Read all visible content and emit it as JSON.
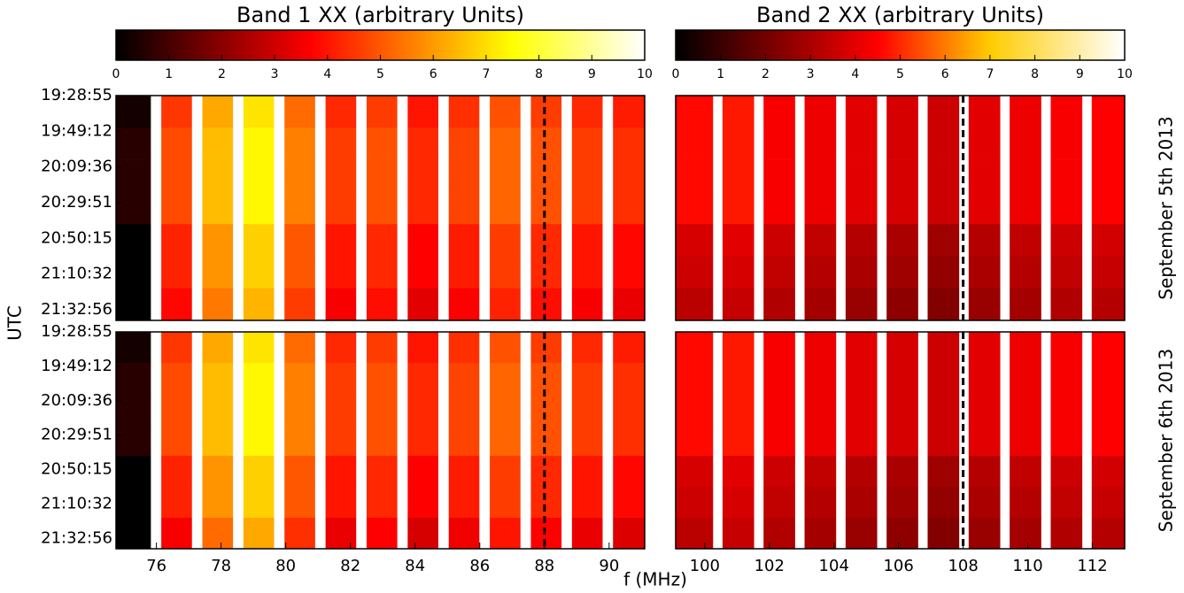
{
  "figure": {
    "xlabel": "f (MHz)",
    "ylabel": "UTC"
  },
  "chart_data": [
    {
      "type": "heatmap",
      "colorbar": {
        "title": "Band 1 XX (arbitrary Units)",
        "lim": [
          0,
          10
        ],
        "ticks": [
          0,
          1,
          2,
          3,
          4,
          5,
          6,
          7,
          8,
          9,
          10
        ],
        "colormap": [
          [
            0,
            "#000000"
          ],
          [
            3.7,
            "#ff0000"
          ],
          [
            7.5,
            "#ffff00"
          ],
          [
            10,
            "#ffffff"
          ]
        ]
      },
      "x_edges": [
        74.75,
        75.82,
        76.15,
        77.09,
        77.42,
        78.36,
        78.69,
        79.63,
        79.96,
        80.9,
        81.23,
        82.17,
        82.5,
        83.44,
        83.77,
        84.71,
        85.04,
        85.98,
        86.31,
        87.25,
        87.58,
        88.52,
        88.85,
        89.79,
        90.12,
        91.1
      ],
      "xlim": [
        74.75,
        91.1
      ],
      "ylim": [
        0,
        6.3
      ],
      "y_edges": [
        0,
        0.9,
        1.8,
        2.7,
        3.6,
        4.5,
        5.4,
        6.3
      ],
      "vline": 88,
      "yticks": [
        {
          "value": 0,
          "label": "19:28:55"
        },
        {
          "value": 1,
          "label": "19:49:12"
        },
        {
          "value": 2,
          "label": "20:09:36"
        },
        {
          "value": 3,
          "label": "20:29:51"
        },
        {
          "value": 4,
          "label": "20:50:15"
        },
        {
          "value": 5,
          "label": "21:10:32"
        },
        {
          "value": 6,
          "label": "21:32:56"
        }
      ],
      "values": [
        [
          0.3,
          null,
          4.5,
          null,
          6.2,
          null,
          7.1,
          null,
          5.3,
          null,
          4.3,
          null,
          4.6,
          null,
          4.0,
          null,
          4.4,
          null,
          4.9,
          null,
          4.6,
          null,
          4.3,
          null,
          4.1
        ],
        [
          0.6,
          null,
          4.8,
          null,
          6.5,
          null,
          7.4,
          null,
          5.6,
          null,
          4.6,
          null,
          4.9,
          null,
          4.3,
          null,
          4.7,
          null,
          5.2,
          null,
          4.9,
          null,
          4.6,
          null,
          4.4
        ],
        [
          0.6,
          null,
          4.8,
          null,
          6.5,
          null,
          7.4,
          null,
          5.6,
          null,
          4.6,
          null,
          4.9,
          null,
          4.3,
          null,
          4.7,
          null,
          5.2,
          null,
          4.9,
          null,
          4.6,
          null,
          4.4
        ],
        [
          0.6,
          null,
          4.8,
          null,
          6.5,
          null,
          7.4,
          null,
          5.6,
          null,
          4.6,
          null,
          4.9,
          null,
          4.3,
          null,
          4.7,
          null,
          5.2,
          null,
          4.9,
          null,
          4.6,
          null,
          4.4
        ],
        [
          0.0,
          null,
          4.2,
          null,
          5.9,
          null,
          6.8,
          null,
          5.0,
          null,
          4.0,
          null,
          4.3,
          null,
          3.7,
          null,
          4.1,
          null,
          4.6,
          null,
          4.3,
          null,
          4.0,
          null,
          3.8
        ],
        [
          0.0,
          null,
          4.2,
          null,
          5.9,
          null,
          6.8,
          null,
          5.0,
          null,
          4.0,
          null,
          4.3,
          null,
          3.7,
          null,
          4.1,
          null,
          4.6,
          null,
          4.3,
          null,
          4.0,
          null,
          3.8
        ],
        [
          0.0,
          null,
          3.8,
          null,
          5.5,
          null,
          6.4,
          null,
          4.6,
          null,
          3.6,
          null,
          3.9,
          null,
          3.3,
          null,
          3.7,
          null,
          4.2,
          null,
          3.9,
          null,
          3.6,
          null,
          3.4
        ]
      ]
    },
    {
      "type": "heatmap",
      "colorbar": {
        "title": "Band 2 XX (arbitrary Units)",
        "lim": [
          0,
          10
        ],
        "ticks": [
          0,
          1,
          2,
          3,
          4,
          5,
          6,
          7,
          8,
          9,
          10
        ],
        "colormap": [
          [
            0,
            "#000000"
          ],
          [
            4.5,
            "#ff0000"
          ],
          [
            7,
            "#ffcc00"
          ],
          [
            10,
            "#ffffff"
          ]
        ]
      },
      "side_label": "September 5th 2013",
      "x_edges": [
        99.1,
        100.25,
        100.55,
        101.52,
        101.82,
        102.79,
        103.09,
        104.06,
        104.36,
        105.33,
        105.63,
        106.6,
        106.9,
        107.87,
        108.17,
        109.14,
        109.44,
        110.41,
        110.71,
        111.68,
        111.98,
        113.0
      ],
      "xlim": [
        99.1,
        113.0
      ],
      "ylim": [
        0,
        6.3
      ],
      "y_edges": [
        0,
        0.9,
        1.8,
        2.7,
        3.6,
        4.5,
        5.4,
        6.3
      ],
      "vline": 108,
      "values": [
        [
          4.6,
          null,
          4.8,
          null,
          4.4,
          null,
          4.2,
          null,
          4.0,
          null,
          3.8,
          null,
          3.6,
          null,
          4.0,
          null,
          4.2,
          null,
          4.4,
          null,
          4.5
        ],
        [
          4.6,
          null,
          4.8,
          null,
          4.4,
          null,
          4.2,
          null,
          4.0,
          null,
          3.8,
          null,
          3.6,
          null,
          4.0,
          null,
          4.2,
          null,
          4.4,
          null,
          4.5
        ],
        [
          4.6,
          null,
          4.8,
          null,
          4.4,
          null,
          4.2,
          null,
          4.0,
          null,
          3.8,
          null,
          3.6,
          null,
          4.0,
          null,
          4.2,
          null,
          4.4,
          null,
          4.5
        ],
        [
          4.6,
          null,
          4.8,
          null,
          4.4,
          null,
          4.2,
          null,
          4.0,
          null,
          3.8,
          null,
          3.6,
          null,
          4.0,
          null,
          4.2,
          null,
          4.4,
          null,
          4.5
        ],
        [
          3.8,
          null,
          4.0,
          null,
          3.6,
          null,
          3.4,
          null,
          3.2,
          null,
          3.0,
          null,
          2.8,
          null,
          3.2,
          null,
          3.4,
          null,
          3.6,
          null,
          3.7
        ],
        [
          3.6,
          null,
          3.8,
          null,
          3.4,
          null,
          3.2,
          null,
          3.0,
          null,
          2.8,
          null,
          2.6,
          null,
          3.0,
          null,
          3.2,
          null,
          3.4,
          null,
          3.5
        ],
        [
          3.3,
          null,
          3.5,
          null,
          3.1,
          null,
          2.9,
          null,
          2.7,
          null,
          2.5,
          null,
          2.3,
          null,
          2.7,
          null,
          2.9,
          null,
          3.1,
          null,
          3.2
        ]
      ]
    },
    {
      "type": "heatmap",
      "x_edges": [
        74.75,
        75.82,
        76.15,
        77.09,
        77.42,
        78.36,
        78.69,
        79.63,
        79.96,
        80.9,
        81.23,
        82.17,
        82.5,
        83.44,
        83.77,
        84.71,
        85.04,
        85.98,
        86.31,
        87.25,
        87.58,
        88.52,
        88.85,
        89.79,
        90.12,
        91.1
      ],
      "xlim": [
        74.75,
        91.1
      ],
      "ylim": [
        0,
        6.3
      ],
      "y_edges": [
        0,
        0.9,
        1.8,
        2.7,
        3.6,
        4.5,
        5.4,
        6.3
      ],
      "vline": 88,
      "xticks": [
        76,
        78,
        80,
        82,
        84,
        86,
        88,
        90
      ],
      "yticks": [
        {
          "value": 0,
          "label": "19:28:55"
        },
        {
          "value": 1,
          "label": "19:49:12"
        },
        {
          "value": 2,
          "label": "20:09:36"
        },
        {
          "value": 3,
          "label": "20:29:51"
        },
        {
          "value": 4,
          "label": "20:50:15"
        },
        {
          "value": 5,
          "label": "21:10:32"
        },
        {
          "value": 6,
          "label": "21:32:56"
        }
      ],
      "values": [
        [
          0.3,
          null,
          4.5,
          null,
          6.2,
          null,
          7.1,
          null,
          5.3,
          null,
          4.3,
          null,
          4.6,
          null,
          4.0,
          null,
          4.4,
          null,
          4.9,
          null,
          4.6,
          null,
          4.3,
          null,
          4.1
        ],
        [
          0.6,
          null,
          4.8,
          null,
          6.5,
          null,
          7.4,
          null,
          5.6,
          null,
          4.6,
          null,
          4.9,
          null,
          4.3,
          null,
          4.7,
          null,
          5.2,
          null,
          4.9,
          null,
          4.6,
          null,
          4.4
        ],
        [
          0.6,
          null,
          4.8,
          null,
          6.5,
          null,
          7.4,
          null,
          5.6,
          null,
          4.6,
          null,
          4.9,
          null,
          4.3,
          null,
          4.7,
          null,
          5.2,
          null,
          4.9,
          null,
          4.6,
          null,
          4.4
        ],
        [
          0.6,
          null,
          4.8,
          null,
          6.5,
          null,
          7.4,
          null,
          5.6,
          null,
          4.6,
          null,
          4.9,
          null,
          4.3,
          null,
          4.7,
          null,
          5.2,
          null,
          4.9,
          null,
          4.6,
          null,
          4.4
        ],
        [
          0.0,
          null,
          4.2,
          null,
          5.9,
          null,
          6.8,
          null,
          5.0,
          null,
          4.0,
          null,
          4.3,
          null,
          3.7,
          null,
          4.1,
          null,
          4.6,
          null,
          4.3,
          null,
          4.0,
          null,
          3.8
        ],
        [
          0.0,
          null,
          4.2,
          null,
          5.9,
          null,
          6.8,
          null,
          5.0,
          null,
          4.0,
          null,
          4.3,
          null,
          3.7,
          null,
          4.1,
          null,
          4.6,
          null,
          4.3,
          null,
          4.0,
          null,
          3.8
        ],
        [
          0.0,
          null,
          3.6,
          null,
          5.3,
          null,
          6.2,
          null,
          4.4,
          null,
          3.4,
          null,
          3.7,
          null,
          3.1,
          null,
          3.5,
          null,
          4.0,
          null,
          3.7,
          null,
          3.4,
          null,
          3.2
        ]
      ]
    },
    {
      "type": "heatmap",
      "side_label": "September 6th 2013",
      "x_edges": [
        99.1,
        100.25,
        100.55,
        101.52,
        101.82,
        102.79,
        103.09,
        104.06,
        104.36,
        105.33,
        105.63,
        106.6,
        106.9,
        107.87,
        108.17,
        109.14,
        109.44,
        110.41,
        110.71,
        111.68,
        111.98,
        113.0
      ],
      "xlim": [
        99.1,
        113.0
      ],
      "ylim": [
        0,
        6.3
      ],
      "y_edges": [
        0,
        0.9,
        1.8,
        2.7,
        3.6,
        4.5,
        5.4,
        6.3
      ],
      "vline": 108,
      "xticks": [
        100,
        102,
        104,
        106,
        108,
        110,
        112
      ],
      "values": [
        [
          4.6,
          null,
          4.8,
          null,
          4.4,
          null,
          4.2,
          null,
          4.0,
          null,
          3.8,
          null,
          3.6,
          null,
          4.0,
          null,
          4.2,
          null,
          4.4,
          null,
          4.5
        ],
        [
          4.6,
          null,
          4.8,
          null,
          4.4,
          null,
          4.2,
          null,
          4.0,
          null,
          3.8,
          null,
          3.6,
          null,
          4.0,
          null,
          4.2,
          null,
          4.4,
          null,
          4.5
        ],
        [
          4.6,
          null,
          4.8,
          null,
          4.4,
          null,
          4.2,
          null,
          4.0,
          null,
          3.8,
          null,
          3.6,
          null,
          4.0,
          null,
          4.2,
          null,
          4.4,
          null,
          4.5
        ],
        [
          4.6,
          null,
          4.8,
          null,
          4.4,
          null,
          4.2,
          null,
          4.0,
          null,
          3.8,
          null,
          3.6,
          null,
          4.0,
          null,
          4.2,
          null,
          4.4,
          null,
          4.5
        ],
        [
          3.8,
          null,
          4.0,
          null,
          3.6,
          null,
          3.4,
          null,
          3.2,
          null,
          3.0,
          null,
          2.8,
          null,
          3.2,
          null,
          3.4,
          null,
          3.6,
          null,
          3.7
        ],
        [
          3.6,
          null,
          3.8,
          null,
          3.4,
          null,
          3.2,
          null,
          3.0,
          null,
          2.8,
          null,
          2.6,
          null,
          3.0,
          null,
          3.2,
          null,
          3.4,
          null,
          3.5
        ],
        [
          3.3,
          null,
          3.5,
          null,
          3.1,
          null,
          2.9,
          null,
          2.7,
          null,
          2.5,
          null,
          2.3,
          null,
          2.7,
          null,
          2.9,
          null,
          3.1,
          null,
          3.2
        ]
      ]
    }
  ]
}
